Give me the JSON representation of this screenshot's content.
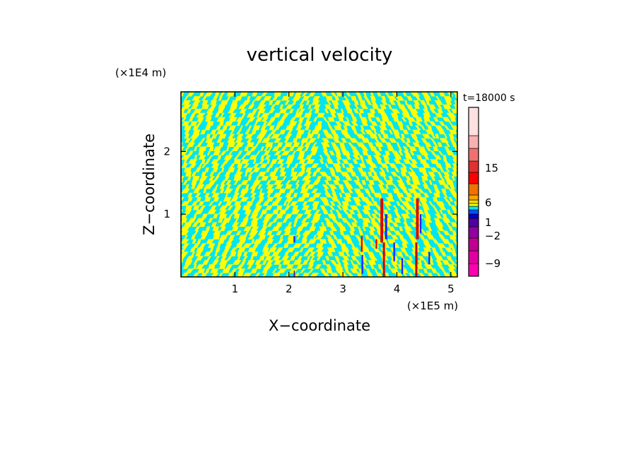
{
  "chart_data": {
    "type": "heatmap",
    "title": "vertical velocity",
    "time_label": "t=18000 s",
    "xlabel": "X−coordinate",
    "ylabel": "Z−coordinate",
    "x_multiplier": "(×1E5 m)",
    "y_multiplier": "(×1E4 m)",
    "xlim": [
      0,
      5.12
    ],
    "ylim": [
      0,
      2.95
    ],
    "x_ticks": [
      {
        "value": 1,
        "label": "1"
      },
      {
        "value": 2,
        "label": "2"
      },
      {
        "value": 3,
        "label": "3"
      },
      {
        "value": 4,
        "label": "4"
      },
      {
        "value": 5,
        "label": "5"
      }
    ],
    "y_ticks": [
      {
        "value": 1,
        "label": "1"
      },
      {
        "value": 2,
        "label": "2"
      }
    ],
    "field": {
      "background_color": "#00e5f0",
      "pattern_color": "#ffff00",
      "cells": [
        {
          "x": 3.72,
          "z0": 0.55,
          "z1": 1.25,
          "w": 0.05,
          "color": "#e00000"
        },
        {
          "x": 3.8,
          "z0": 0.6,
          "z1": 1.0,
          "w": 0.04,
          "color": "#2020ff"
        },
        {
          "x": 3.76,
          "z0": 0.0,
          "z1": 0.55,
          "w": 0.04,
          "color": "#d80000"
        },
        {
          "x": 4.38,
          "z0": 0.6,
          "z1": 1.25,
          "w": 0.05,
          "color": "#e00000"
        },
        {
          "x": 4.44,
          "z0": 0.7,
          "z1": 1.0,
          "w": 0.03,
          "color": "#2020ff"
        },
        {
          "x": 4.36,
          "z0": 0.0,
          "z1": 0.55,
          "w": 0.04,
          "color": "#c00000"
        },
        {
          "x": 3.35,
          "z0": 0.4,
          "z1": 0.65,
          "w": 0.03,
          "color": "#e00000"
        },
        {
          "x": 3.36,
          "z0": 0.05,
          "z1": 0.35,
          "w": 0.03,
          "color": "#2020ff"
        },
        {
          "x": 4.1,
          "z0": 0.05,
          "z1": 0.3,
          "w": 0.03,
          "color": "#2020ff"
        },
        {
          "x": 3.95,
          "z0": 0.25,
          "z1": 0.55,
          "w": 0.03,
          "color": "#2020ff"
        },
        {
          "x": 2.1,
          "z0": 0.55,
          "z1": 0.65,
          "w": 0.03,
          "color": "#2020ff"
        },
        {
          "x": 2.1,
          "z0": 0.0,
          "z1": 0.1,
          "w": 0.02,
          "color": "#600090"
        },
        {
          "x": 3.62,
          "z0": 0.45,
          "z1": 0.6,
          "w": 0.03,
          "color": "#e00000"
        },
        {
          "x": 4.6,
          "z0": 0.2,
          "z1": 0.4,
          "w": 0.03,
          "color": "#2020ff"
        }
      ]
    },
    "colorbar": {
      "levels": [
        {
          "color": "#ff00b0"
        },
        {
          "color": "#e000a0"
        },
        {
          "color": "#c00090"
        },
        {
          "color": "#9000a0"
        },
        {
          "color": "#5000a0"
        },
        {
          "color": "#0000d0"
        },
        {
          "color": "#0050ff"
        },
        {
          "color": "#00e5f0"
        },
        {
          "color": "#ffff00"
        },
        {
          "color": "#f0d800"
        },
        {
          "color": "#ffa000"
        },
        {
          "color": "#f07000"
        },
        {
          "color": "#ff0000"
        },
        {
          "color": "#e03030"
        },
        {
          "color": "#f07070"
        },
        {
          "color": "#f8b0b0"
        },
        {
          "color": "#ffe0e0"
        }
      ],
      "labels": [
        "15",
        "6",
        "1",
        "−2",
        "−9"
      ]
    }
  }
}
